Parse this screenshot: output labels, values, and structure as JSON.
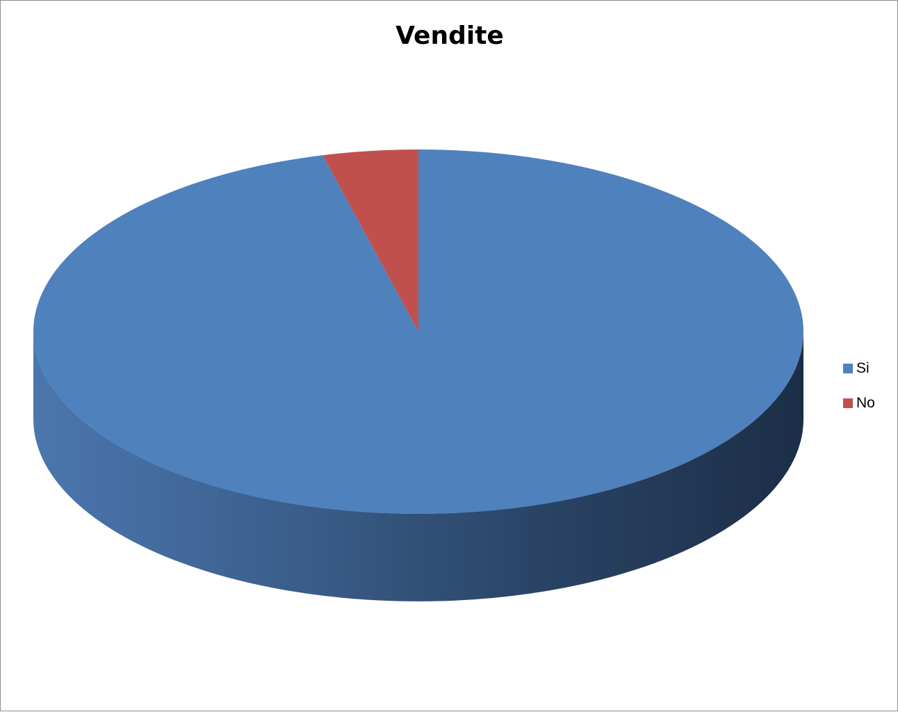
{
  "chart_data": {
    "type": "pie",
    "title": "Vendite",
    "style": "3d",
    "legend_position": "right",
    "slices": [
      {
        "label": "Si",
        "value": 96,
        "color": "#4f81bd"
      },
      {
        "label": "No",
        "value": 4,
        "color": "#c0504d"
      }
    ]
  }
}
